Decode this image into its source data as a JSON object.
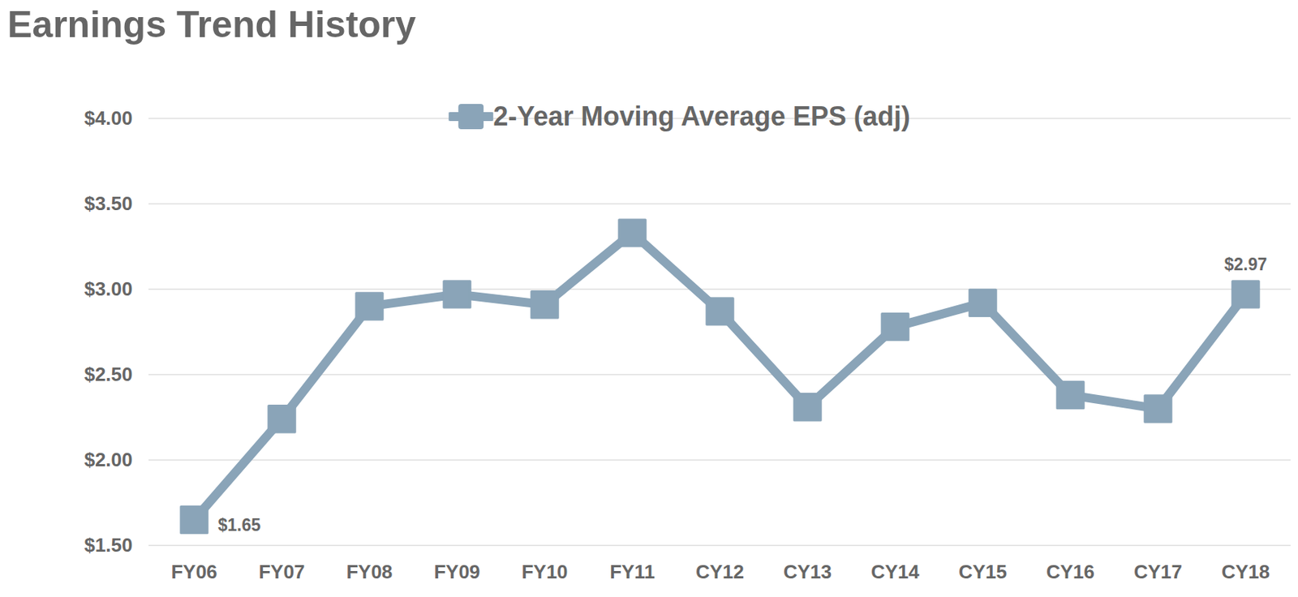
{
  "chart_data": {
    "type": "line",
    "title": "Earnings Trend History",
    "categories": [
      "FY06",
      "FY07",
      "FY08",
      "FY09",
      "FY10",
      "FY11",
      "CY12",
      "CY13",
      "CY14",
      "CY15",
      "CY16",
      "CY17",
      "CY18"
    ],
    "series": [
      {
        "name": "2-Year Moving Average EPS (adj)",
        "color": "#8aa4b8",
        "marker": "square",
        "values": [
          1.65,
          2.24,
          2.9,
          2.97,
          2.91,
          3.33,
          2.87,
          2.31,
          2.78,
          2.92,
          2.38,
          2.3,
          2.97
        ]
      }
    ],
    "ylim": [
      1.5,
      4.0
    ],
    "yticks": [
      {
        "value": 1.5,
        "label": "$1.50"
      },
      {
        "value": 2.0,
        "label": "$2.00"
      },
      {
        "value": 2.5,
        "label": "$2.50"
      },
      {
        "value": 3.0,
        "label": "$3.00"
      },
      {
        "value": 3.5,
        "label": "$3.50"
      },
      {
        "value": 4.0,
        "label": "$4.00"
      }
    ],
    "grid": true,
    "legend": "top",
    "annotations": [
      {
        "x": "FY06",
        "y": 1.65,
        "text": "$1.65"
      },
      {
        "x": "CY18",
        "y": 2.97,
        "text": "$2.97"
      }
    ]
  }
}
